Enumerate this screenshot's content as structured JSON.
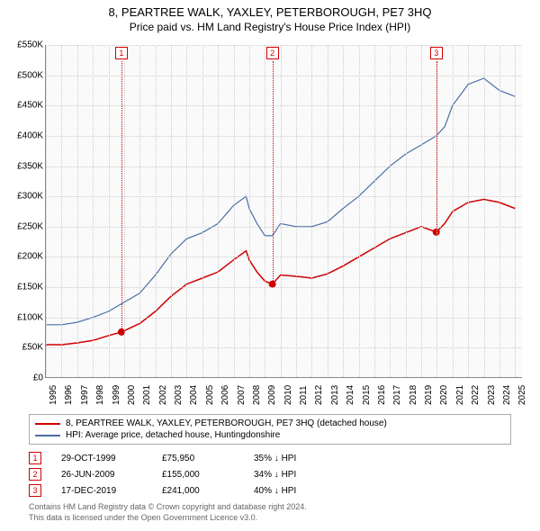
{
  "title": "8, PEARTREE WALK, YAXLEY, PETERBOROUGH, PE7 3HQ",
  "subtitle": "Price paid vs. HM Land Registry's House Price Index (HPI)",
  "chart": {
    "type": "line",
    "background_color": "#fafafa",
    "grid_color": "#cccccc",
    "axis_color": "#888888",
    "label_fontsize": 10,
    "title_fontsize": 13,
    "x": {
      "min": 1995,
      "max": 2025.5,
      "ticks": [
        1995,
        1996,
        1997,
        1998,
        1999,
        2000,
        2001,
        2002,
        2003,
        2004,
        2005,
        2006,
        2007,
        2008,
        2009,
        2010,
        2011,
        2012,
        2013,
        2014,
        2015,
        2016,
        2017,
        2018,
        2019,
        2020,
        2021,
        2022,
        2023,
        2024,
        2025
      ]
    },
    "y": {
      "min": 0,
      "max": 550000,
      "tick_step": 50000,
      "prefix": "£",
      "suffix": "K",
      "divisor": 1000
    },
    "series": [
      {
        "id": "property",
        "label": "8, PEARTREE WALK, YAXLEY, PETERBOROUGH, PE7 3HQ (detached house)",
        "color": "#d00000",
        "width": 1.5,
        "data": [
          [
            1995,
            55000
          ],
          [
            1996,
            55000
          ],
          [
            1997,
            58000
          ],
          [
            1998,
            62000
          ],
          [
            1999,
            70000
          ],
          [
            1999.83,
            75950
          ],
          [
            2000,
            78000
          ],
          [
            2001,
            90000
          ],
          [
            2002,
            110000
          ],
          [
            2003,
            135000
          ],
          [
            2004,
            155000
          ],
          [
            2005,
            165000
          ],
          [
            2006,
            175000
          ],
          [
            2007,
            195000
          ],
          [
            2007.8,
            210000
          ],
          [
            2008,
            195000
          ],
          [
            2008.5,
            175000
          ],
          [
            2009,
            160000
          ],
          [
            2009.48,
            155000
          ],
          [
            2010,
            170000
          ],
          [
            2011,
            168000
          ],
          [
            2012,
            165000
          ],
          [
            2013,
            172000
          ],
          [
            2014,
            185000
          ],
          [
            2015,
            200000
          ],
          [
            2016,
            215000
          ],
          [
            2017,
            230000
          ],
          [
            2018,
            240000
          ],
          [
            2019,
            250000
          ],
          [
            2019.96,
            241000
          ],
          [
            2020.5,
            255000
          ],
          [
            2021,
            275000
          ],
          [
            2022,
            290000
          ],
          [
            2023,
            295000
          ],
          [
            2024,
            290000
          ],
          [
            2025,
            280000
          ]
        ]
      },
      {
        "id": "hpi",
        "label": "HPI: Average price, detached house, Huntingdonshire",
        "color": "#4a6fa5",
        "width": 1.2,
        "data": [
          [
            1995,
            88000
          ],
          [
            1996,
            88000
          ],
          [
            1997,
            92000
          ],
          [
            1998,
            100000
          ],
          [
            1999,
            110000
          ],
          [
            2000,
            125000
          ],
          [
            2001,
            140000
          ],
          [
            2002,
            170000
          ],
          [
            2003,
            205000
          ],
          [
            2004,
            230000
          ],
          [
            2005,
            240000
          ],
          [
            2006,
            255000
          ],
          [
            2007,
            285000
          ],
          [
            2007.8,
            300000
          ],
          [
            2008,
            280000
          ],
          [
            2008.5,
            255000
          ],
          [
            2009,
            235000
          ],
          [
            2009.48,
            235000
          ],
          [
            2010,
            255000
          ],
          [
            2011,
            250000
          ],
          [
            2012,
            250000
          ],
          [
            2013,
            258000
          ],
          [
            2014,
            280000
          ],
          [
            2015,
            300000
          ],
          [
            2016,
            325000
          ],
          [
            2017,
            350000
          ],
          [
            2018,
            370000
          ],
          [
            2019,
            385000
          ],
          [
            2019.96,
            400000
          ],
          [
            2020.5,
            415000
          ],
          [
            2021,
            450000
          ],
          [
            2022,
            485000
          ],
          [
            2023,
            495000
          ],
          [
            2024,
            475000
          ],
          [
            2025,
            465000
          ]
        ]
      }
    ],
    "sale_markers": [
      {
        "n": "1",
        "year": 1999.83,
        "price": 75950,
        "color": "#d00000"
      },
      {
        "n": "2",
        "year": 2009.48,
        "price": 155000,
        "color": "#d00000"
      },
      {
        "n": "3",
        "year": 2019.96,
        "price": 241000,
        "color": "#d00000"
      }
    ]
  },
  "legend": {
    "rows": [
      {
        "color": "#d00000",
        "label": "8, PEARTREE WALK, YAXLEY, PETERBOROUGH, PE7 3HQ (detached house)"
      },
      {
        "color": "#4a6fa5",
        "label": "HPI: Average price, detached house, Huntingdonshire"
      }
    ]
  },
  "sales": [
    {
      "n": "1",
      "date": "29-OCT-1999",
      "price": "£75,950",
      "pct": "35% ↓ HPI",
      "color": "#d00000"
    },
    {
      "n": "2",
      "date": "26-JUN-2009",
      "price": "£155,000",
      "pct": "34% ↓ HPI",
      "color": "#d00000"
    },
    {
      "n": "3",
      "date": "17-DEC-2019",
      "price": "£241,000",
      "pct": "40% ↓ HPI",
      "color": "#d00000"
    }
  ],
  "attribution": {
    "line1": "Contains HM Land Registry data © Crown copyright and database right 2024.",
    "line2": "This data is licensed under the Open Government Licence v3.0."
  }
}
